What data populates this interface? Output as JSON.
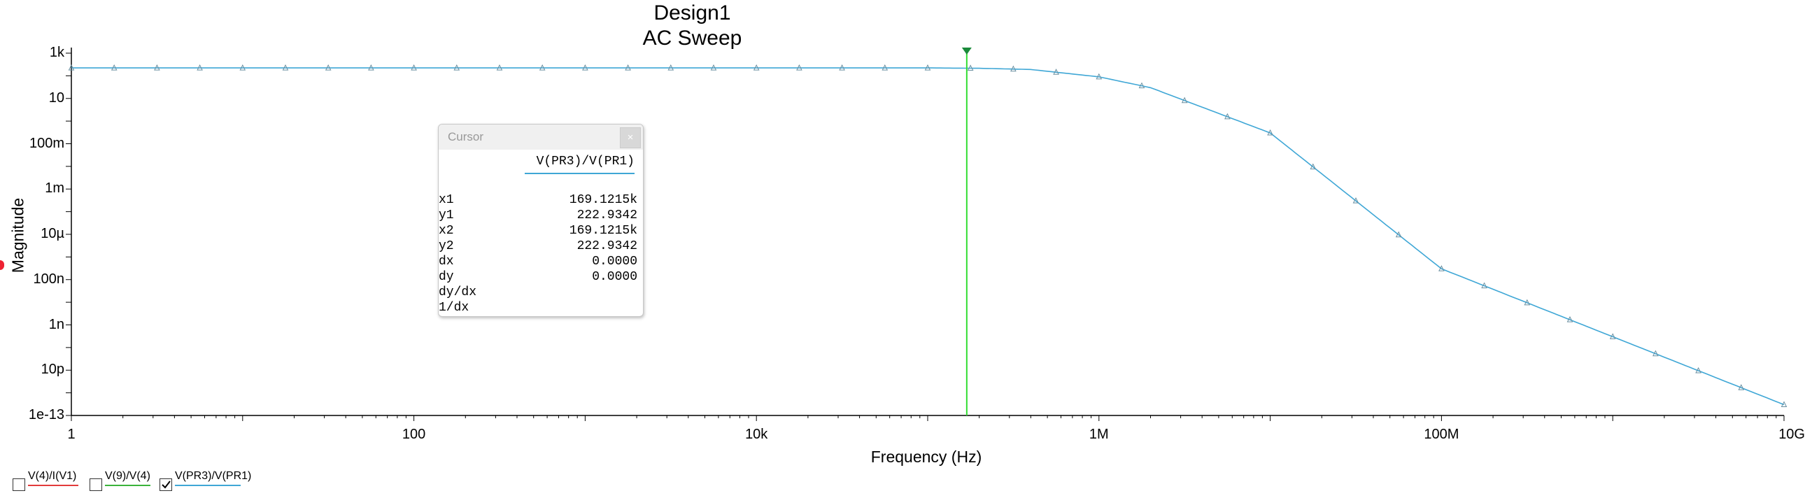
{
  "chart_data": {
    "type": "line",
    "title": "Design1",
    "subtitle": "AC Sweep",
    "xlabel": "Frequency (Hz)",
    "ylabel": "Magnitude",
    "xscale": "log",
    "yscale": "log",
    "xlim": [
      1,
      10000000000
    ],
    "ylim": [
      1e-13,
      1000
    ],
    "x_ticks": [
      "1",
      "100",
      "10k",
      "1M",
      "100M",
      "10G"
    ],
    "y_ticks": [
      "1k",
      "10",
      "100m",
      "1m",
      "10µ",
      "100n",
      "1n",
      "10p",
      "1e-13"
    ],
    "grid": false,
    "series": [
      {
        "name": "V(PR3)/V(PR1)",
        "color": "#3fa7d6",
        "marker": "triangle",
        "x": [
          1,
          1000,
          10000,
          100000,
          200000,
          400000,
          1000000,
          2000000,
          10000000,
          100000000,
          1000000000,
          10000000000
        ],
        "y": [
          223,
          223,
          223,
          222.9,
          215,
          190,
          90,
          30,
          0.3,
          3e-07,
          3e-10,
          3e-13
        ]
      }
    ],
    "cursor": {
      "x": 169121.5,
      "color": "#33dd33"
    }
  },
  "cursor_panel": {
    "title": "Cursor",
    "close": "×",
    "column": "V(PR3)/V(PR1)",
    "rows": [
      {
        "label": "x1",
        "value": "169.1215k"
      },
      {
        "label": "y1",
        "value": "222.9342"
      },
      {
        "label": "x2",
        "value": "169.1215k"
      },
      {
        "label": "y2",
        "value": "222.9342"
      },
      {
        "label": "dx",
        "value": "0.0000"
      },
      {
        "label": "dy",
        "value": "0.0000"
      },
      {
        "label": "dy/dx",
        "value": ""
      },
      {
        "label": "1/dx",
        "value": ""
      }
    ]
  },
  "legend": [
    {
      "label": "V(4)/I(V1)",
      "color": "#e33b3b",
      "checked": false
    },
    {
      "label": "V(9)/V(4)",
      "color": "#3bb33b",
      "checked": false
    },
    {
      "label": "V(PR3)/V(PR1)",
      "color": "#3fa7d6",
      "checked": true
    }
  ]
}
